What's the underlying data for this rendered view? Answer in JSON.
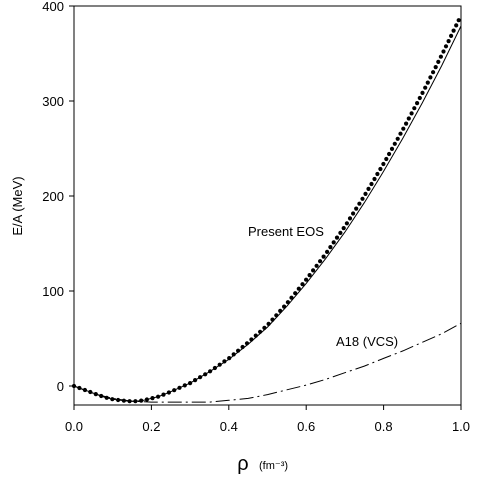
{
  "chart_data": {
    "type": "line",
    "title": "",
    "xlabel": "ρ",
    "xlabel_unit": "(fm⁻³)",
    "ylabel": "E/A (MeV)",
    "xlim": [
      0.0,
      1.0
    ],
    "ylim": [
      -20,
      400
    ],
    "xticks": [
      "0.0",
      "0.2",
      "0.4",
      "0.6",
      "0.8",
      "1.0"
    ],
    "yticks": [
      "0",
      "100",
      "200",
      "300",
      "400"
    ],
    "annotations": [
      "Present EOS",
      "A18 (VCS)"
    ],
    "series": [
      {
        "style": "dotted",
        "x": [
          0.0,
          0.02,
          0.04,
          0.06,
          0.08,
          0.1,
          0.12,
          0.14,
          0.16,
          0.18,
          0.2,
          0.22,
          0.25,
          0.3,
          0.35,
          0.4,
          0.45,
          0.5,
          0.55,
          0.6,
          0.65,
          0.7,
          0.75,
          0.8,
          0.85,
          0.9,
          0.95,
          1.0
        ],
        "y": [
          0,
          -3,
          -6,
          -9,
          -12,
          -14,
          -15,
          -16,
          -16,
          -15,
          -13,
          -11,
          -6,
          3,
          15,
          29,
          46,
          64,
          87,
          112,
          139,
          168,
          200,
          234,
          270,
          308,
          348,
          390
        ]
      },
      {
        "style": "solid",
        "x": [
          0.0,
          0.02,
          0.04,
          0.06,
          0.08,
          0.1,
          0.12,
          0.14,
          0.16,
          0.18,
          0.2,
          0.22,
          0.25,
          0.3,
          0.35,
          0.4,
          0.45,
          0.5,
          0.55,
          0.6,
          0.65,
          0.7,
          0.75,
          0.8,
          0.85,
          0.9,
          0.95,
          1.0
        ],
        "y": [
          0,
          -3,
          -6,
          -9,
          -12,
          -14,
          -15,
          -16,
          -16,
          -15,
          -13,
          -11,
          -6,
          3,
          15,
          28,
          44,
          62,
          84,
          108,
          134,
          162,
          193,
          226,
          261,
          298,
          337,
          379
        ]
      },
      {
        "style": "dash-dot",
        "x": [
          0.0,
          0.05,
          0.1,
          0.15,
          0.2,
          0.25,
          0.3,
          0.35,
          0.4,
          0.45,
          0.5,
          0.55,
          0.6,
          0.65,
          0.7,
          0.75,
          0.8,
          0.85,
          0.9,
          0.95,
          1.0
        ],
        "y": [
          0,
          -8,
          -13,
          -16,
          -17,
          -17,
          -17,
          -17,
          -15,
          -13,
          -9,
          -4,
          1,
          7,
          14,
          21,
          29,
          37,
          46,
          55,
          66
        ]
      }
    ]
  }
}
